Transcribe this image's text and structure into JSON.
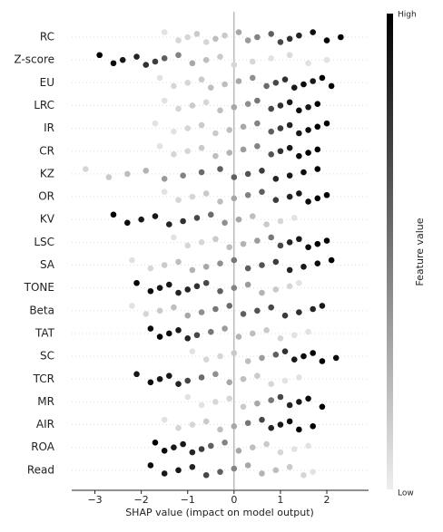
{
  "chart_data": {
    "type": "beeswarm",
    "x_label": "SHAP value (impact on model output)",
    "colorbar_label": "Feature value",
    "colorbar_high": "High",
    "colorbar_low": "Low",
    "color_high": "#000000",
    "color_low": "#eeeeee",
    "zero_line_color": "#999999",
    "xlim": [
      -3.5,
      2.9
    ],
    "xticks": [
      {
        "value": -3,
        "label": "−3"
      },
      {
        "value": -2,
        "label": "−2"
      },
      {
        "value": -1,
        "label": "−1"
      },
      0,
      1,
      2
    ],
    "features": [
      {
        "name": "RC",
        "shap": [
          -1.5,
          -1.2,
          -1.0,
          -0.8,
          -0.6,
          -0.4,
          -0.2,
          0.1,
          0.3,
          0.5,
          0.8,
          1.0,
          1.2,
          1.4,
          1.7,
          2.0,
          2.3
        ],
        "feature_value": [
          0.05,
          0.1,
          0.1,
          0.15,
          0.1,
          0.2,
          0.15,
          0.3,
          0.35,
          0.45,
          0.6,
          0.7,
          0.8,
          0.85,
          0.95,
          1,
          1
        ]
      },
      {
        "name": "Z-score",
        "shap": [
          -2.9,
          -2.6,
          -2.4,
          -2.1,
          -1.9,
          -1.7,
          -1.5,
          -1.2,
          -0.9,
          -0.6,
          -0.3,
          0.0,
          0.4,
          0.8,
          1.2,
          1.6,
          2.0
        ],
        "feature_value": [
          1,
          0.95,
          0.9,
          0.85,
          0.8,
          0.75,
          0.6,
          0.45,
          0.3,
          0.2,
          0.15,
          0.1,
          0.1,
          0.05,
          0.08,
          0.05,
          0.05
        ]
      },
      {
        "name": "EU",
        "shap": [
          -1.6,
          -1.3,
          -1.0,
          -0.7,
          -0.5,
          -0.2,
          0.1,
          0.4,
          0.7,
          0.9,
          1.1,
          1.3,
          1.5,
          1.7,
          1.9,
          2.1
        ],
        "feature_value": [
          0.05,
          0.1,
          0.1,
          0.15,
          0.2,
          0.2,
          0.3,
          0.4,
          0.55,
          0.7,
          0.8,
          0.9,
          0.95,
          0.9,
          1,
          1
        ]
      },
      {
        "name": "LRC",
        "shap": [
          -1.5,
          -1.2,
          -0.9,
          -0.6,
          -0.3,
          0.0,
          0.3,
          0.5,
          0.8,
          1.0,
          1.2,
          1.4,
          1.6,
          1.8
        ],
        "feature_value": [
          0.05,
          0.1,
          0.15,
          0.1,
          0.2,
          0.3,
          0.4,
          0.5,
          0.7,
          0.8,
          0.9,
          0.95,
          0.9,
          1
        ]
      },
      {
        "name": "IR",
        "shap": [
          -1.7,
          -1.3,
          -1.0,
          -0.7,
          -0.4,
          -0.1,
          0.2,
          0.5,
          0.8,
          1.0,
          1.2,
          1.4,
          1.6,
          1.8,
          2.0
        ],
        "feature_value": [
          0.05,
          0.05,
          0.1,
          0.15,
          0.15,
          0.2,
          0.3,
          0.45,
          0.6,
          0.75,
          0.85,
          0.9,
          0.95,
          1,
          1
        ]
      },
      {
        "name": "CR",
        "shap": [
          -1.6,
          -1.3,
          -1.0,
          -0.7,
          -0.4,
          -0.1,
          0.2,
          0.5,
          0.8,
          1.0,
          1.2,
          1.4,
          1.6,
          1.8
        ],
        "feature_value": [
          0.05,
          0.1,
          0.1,
          0.15,
          0.2,
          0.25,
          0.35,
          0.45,
          0.65,
          0.8,
          0.9,
          0.95,
          1,
          1
        ]
      },
      {
        "name": "KZ",
        "shap": [
          -3.2,
          -2.7,
          -2.3,
          -1.9,
          -1.5,
          -1.1,
          -0.7,
          -0.3,
          0.0,
          0.3,
          0.6,
          0.9,
          1.2,
          1.5,
          1.8
        ],
        "feature_value": [
          0.1,
          0.15,
          0.2,
          0.25,
          0.35,
          0.45,
          0.55,
          0.6,
          0.6,
          0.65,
          0.75,
          0.85,
          0.9,
          0.95,
          1
        ]
      },
      {
        "name": "OR",
        "shap": [
          -1.5,
          -1.2,
          -0.9,
          -0.6,
          -0.3,
          0.0,
          0.3,
          0.6,
          0.9,
          1.2,
          1.4,
          1.6,
          1.8,
          2.0
        ],
        "feature_value": [
          0.05,
          0.1,
          0.1,
          0.15,
          0.2,
          0.3,
          0.45,
          0.6,
          0.75,
          0.85,
          0.9,
          0.95,
          1,
          1
        ]
      },
      {
        "name": "KV",
        "shap": [
          -2.6,
          -2.3,
          -2.0,
          -1.7,
          -1.4,
          -1.1,
          -0.8,
          -0.5,
          -0.2,
          0.1,
          0.4,
          0.7,
          1.0,
          1.3
        ],
        "feature_value": [
          1,
          0.95,
          0.9,
          0.9,
          0.85,
          0.8,
          0.7,
          0.55,
          0.4,
          0.3,
          0.2,
          0.15,
          0.1,
          0.05
        ]
      },
      {
        "name": "LSC",
        "shap": [
          -1.3,
          -1.0,
          -0.7,
          -0.4,
          -0.1,
          0.2,
          0.5,
          0.8,
          1.0,
          1.2,
          1.4,
          1.6,
          1.8,
          2.0
        ],
        "feature_value": [
          0.05,
          0.1,
          0.1,
          0.15,
          0.2,
          0.25,
          0.35,
          0.5,
          0.7,
          0.85,
          0.9,
          0.95,
          1,
          1
        ]
      },
      {
        "name": "SA",
        "shap": [
          -2.2,
          -1.8,
          -1.5,
          -1.2,
          -0.9,
          -0.6,
          -0.3,
          0.0,
          0.3,
          0.6,
          0.9,
          1.2,
          1.5,
          1.8,
          2.1
        ],
        "feature_value": [
          0.05,
          0.1,
          0.15,
          0.2,
          0.25,
          0.3,
          0.4,
          0.5,
          0.6,
          0.65,
          0.75,
          0.85,
          0.9,
          0.95,
          1
        ]
      },
      {
        "name": "TONE",
        "shap": [
          -2.1,
          -1.8,
          -1.6,
          -1.4,
          -1.2,
          -1.0,
          -0.8,
          -0.6,
          -0.3,
          0.0,
          0.3,
          0.6,
          0.9,
          1.2,
          1.4
        ],
        "feature_value": [
          1,
          0.95,
          0.9,
          0.9,
          0.85,
          0.85,
          0.8,
          0.7,
          0.6,
          0.45,
          0.35,
          0.25,
          0.15,
          0.1,
          0.05
        ]
      },
      {
        "name": "Beta",
        "shap": [
          -2.2,
          -1.9,
          -1.6,
          -1.3,
          -1.0,
          -0.7,
          -0.4,
          -0.1,
          0.2,
          0.5,
          0.8,
          1.1,
          1.4,
          1.7,
          1.9
        ],
        "feature_value": [
          0.05,
          0.1,
          0.15,
          0.2,
          0.3,
          0.4,
          0.5,
          0.55,
          0.6,
          0.65,
          0.7,
          0.75,
          0.8,
          0.85,
          0.9
        ]
      },
      {
        "name": "TAT",
        "shap": [
          -1.8,
          -1.6,
          -1.4,
          -1.2,
          -1.0,
          -0.8,
          -0.5,
          -0.2,
          0.1,
          0.4,
          0.7,
          1.0,
          1.3,
          1.6
        ],
        "feature_value": [
          0.95,
          1,
          0.95,
          0.9,
          0.85,
          0.7,
          0.5,
          0.35,
          0.25,
          0.2,
          0.15,
          0.1,
          0.05,
          0.05
        ]
      },
      {
        "name": "SC",
        "shap": [
          -0.9,
          -0.6,
          -0.3,
          0.0,
          0.3,
          0.6,
          0.9,
          1.1,
          1.3,
          1.5,
          1.7,
          1.9,
          2.2
        ],
        "feature_value": [
          0.05,
          0.1,
          0.1,
          0.15,
          0.2,
          0.35,
          0.6,
          0.8,
          0.9,
          0.95,
          1,
          1,
          0.95
        ]
      },
      {
        "name": "TCR",
        "shap": [
          -2.1,
          -1.8,
          -1.6,
          -1.4,
          -1.2,
          -1.0,
          -0.7,
          -0.4,
          -0.1,
          0.2,
          0.5,
          0.8,
          1.1,
          1.4
        ],
        "feature_value": [
          0.9,
          0.95,
          0.9,
          0.9,
          0.85,
          0.7,
          0.55,
          0.4,
          0.3,
          0.2,
          0.15,
          0.1,
          0.05,
          0.05
        ]
      },
      {
        "name": "MR",
        "shap": [
          -1.0,
          -0.7,
          -0.4,
          -0.1,
          0.2,
          0.5,
          0.8,
          1.0,
          1.2,
          1.4,
          1.6,
          1.9
        ],
        "feature_value": [
          0.05,
          0.05,
          0.1,
          0.1,
          0.15,
          0.3,
          0.5,
          0.7,
          0.85,
          0.9,
          0.95,
          1
        ]
      },
      {
        "name": "AIR",
        "shap": [
          -1.5,
          -1.2,
          -0.9,
          -0.6,
          -0.3,
          0.0,
          0.3,
          0.6,
          0.8,
          1.0,
          1.2,
          1.4,
          1.7
        ],
        "feature_value": [
          0.05,
          0.1,
          0.1,
          0.15,
          0.2,
          0.3,
          0.5,
          0.7,
          0.85,
          0.9,
          0.95,
          1,
          1
        ]
      },
      {
        "name": "ROA",
        "shap": [
          -1.7,
          -1.5,
          -1.3,
          -1.1,
          -0.9,
          -0.7,
          -0.5,
          -0.2,
          0.1,
          0.4,
          0.7,
          1.0,
          1.3,
          1.6
        ],
        "feature_value": [
          1,
          0.95,
          0.9,
          0.9,
          0.85,
          0.75,
          0.6,
          0.45,
          0.3,
          0.2,
          0.15,
          0.1,
          0.05,
          0.05
        ]
      },
      {
        "name": "Read",
        "shap": [
          -1.8,
          -1.5,
          -1.2,
          -0.9,
          -0.6,
          -0.3,
          0.0,
          0.3,
          0.6,
          0.9,
          1.2,
          1.5,
          1.7
        ],
        "feature_value": [
          0.95,
          0.9,
          0.9,
          0.85,
          0.7,
          0.6,
          0.45,
          0.3,
          0.25,
          0.2,
          0.15,
          0.1,
          0.05
        ]
      }
    ]
  }
}
